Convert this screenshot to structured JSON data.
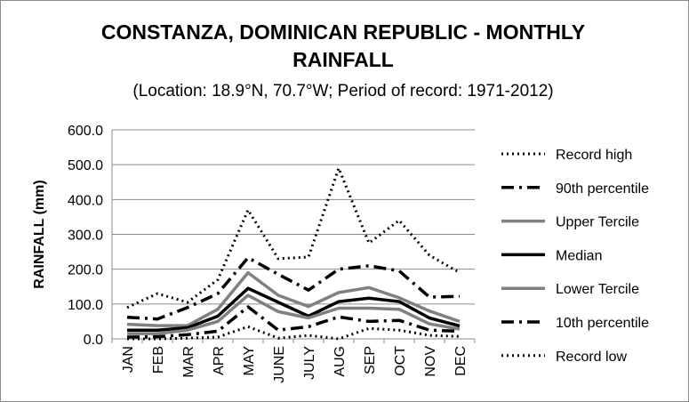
{
  "chart_data": {
    "type": "line",
    "title_line1": "CONSTANZA, DOMINICAN REPUBLIC - MONTHLY",
    "title_line2": "RAINFALL",
    "subtitle": "(Location: 18.9°N, 70.7°W; Period of record: 1971-2012)",
    "xlabel": "",
    "ylabel": "RAINFALL (mm)",
    "ylim": [
      0,
      600
    ],
    "yticks": [
      "0.0",
      "100.0",
      "200.0",
      "300.0",
      "400.0",
      "500.0",
      "600.0"
    ],
    "categories": [
      "JAN",
      "FEB",
      "MAR",
      "APR",
      "MAY",
      "JUNE",
      "JULY",
      "AUG",
      "SEP",
      "OCT",
      "NOV",
      "DEC"
    ],
    "grid": true,
    "legend_position": "right",
    "series": [
      {
        "name": "Record high",
        "color": "#000000",
        "style": "dotted",
        "values": [
          90,
          130,
          105,
          170,
          370,
          230,
          235,
          490,
          275,
          340,
          240,
          190
        ]
      },
      {
        "name": "90th percentile",
        "color": "#000000",
        "style": "dashdot",
        "values": [
          62,
          57,
          90,
          130,
          233,
          185,
          140,
          200,
          210,
          195,
          120,
          122
        ]
      },
      {
        "name": "Upper Tercile",
        "color": "#808080",
        "style": "solid",
        "values": [
          42,
          38,
          38,
          85,
          190,
          125,
          93,
          133,
          147,
          118,
          80,
          50
        ]
      },
      {
        "name": "Median",
        "color": "#000000",
        "style": "solid",
        "values": [
          25,
          25,
          32,
          65,
          145,
          105,
          65,
          107,
          117,
          107,
          60,
          37
        ]
      },
      {
        "name": "Lower Tercile",
        "color": "#808080",
        "style": "solid",
        "values": [
          15,
          15,
          25,
          50,
          125,
          78,
          60,
          88,
          88,
          85,
          43,
          28
        ]
      },
      {
        "name": "10th percentile",
        "color": "#000000",
        "style": "dashdot",
        "values": [
          5,
          6,
          12,
          22,
          92,
          25,
          35,
          63,
          50,
          53,
          25,
          22
        ]
      },
      {
        "name": "Record low",
        "color": "#000000",
        "style": "dotted",
        "values": [
          0,
          0,
          2,
          5,
          35,
          2,
          10,
          0,
          30,
          25,
          10,
          7
        ]
      }
    ]
  }
}
